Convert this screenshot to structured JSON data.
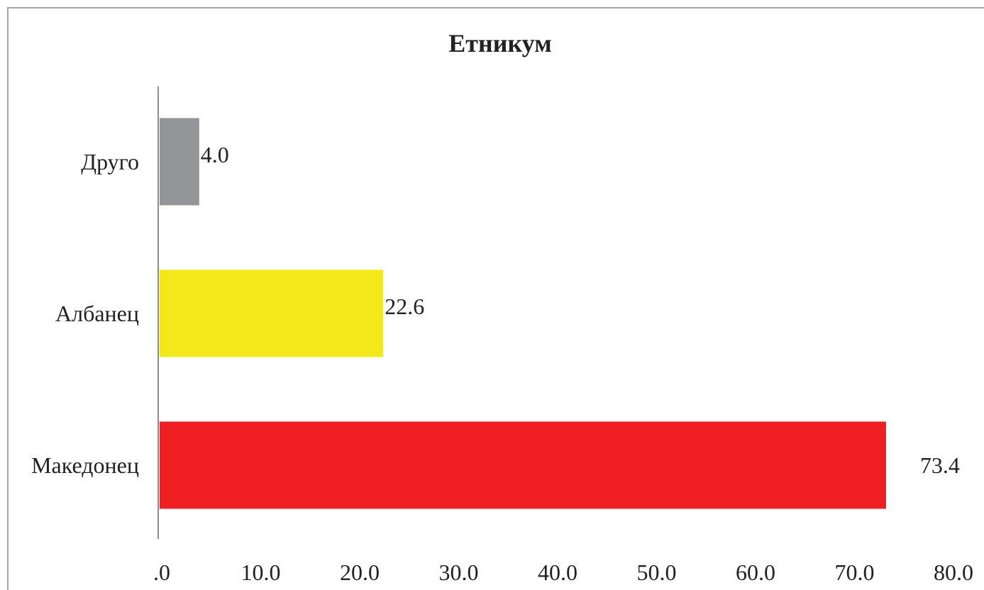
{
  "chart_data": {
    "type": "bar",
    "orientation": "horizontal",
    "title": "Етникум",
    "categories": [
      "Македонец",
      "Албанец",
      "Друго"
    ],
    "values": [
      73.4,
      22.6,
      4.0
    ],
    "value_labels": [
      "73.4",
      "22.6",
      "4.0"
    ],
    "colors": [
      "#ee2024",
      "#f2e81a",
      "#939598"
    ],
    "xlabel": "",
    "ylabel": "",
    "xlim": [
      0,
      80
    ],
    "x_ticks": [
      0,
      10,
      20,
      30,
      40,
      50,
      60,
      70,
      80
    ],
    "x_tick_labels": [
      ".0",
      "10.0",
      "20.0",
      "30.0",
      "40.0",
      "50.0",
      "60.0",
      "70.0",
      "80.0"
    ],
    "grid": false,
    "legend": "none"
  }
}
